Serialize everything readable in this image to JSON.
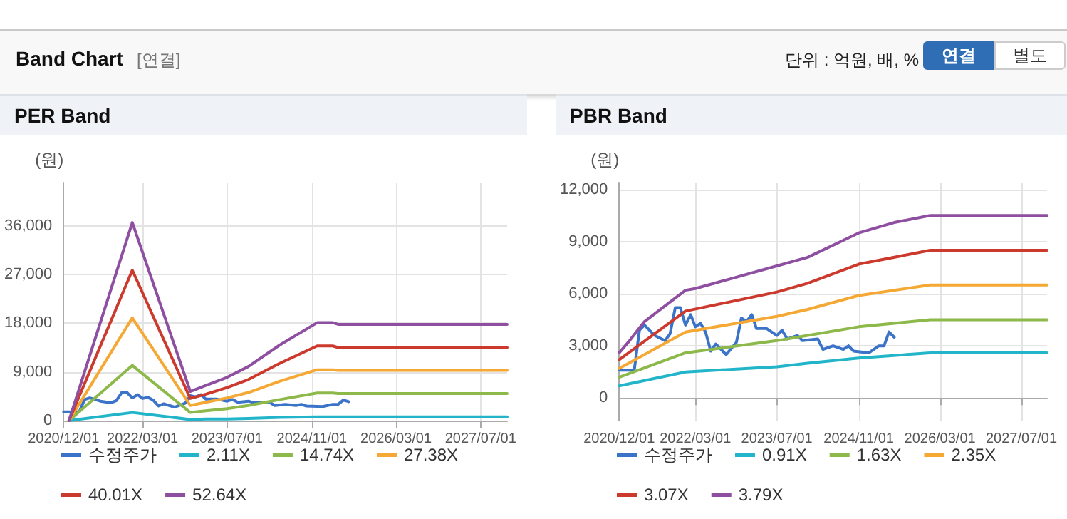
{
  "chart_data": [
    {
      "type": "other",
      "title": "Band Chart",
      "annotations": [
        "[연결]",
        "단위 : 억원, 배, %",
        "연결",
        "별도"
      ]
    },
    {
      "type": "line",
      "title": "PER Band",
      "ylabel": "(원)",
      "legend": "bottom",
      "grid": true,
      "xlim": [
        "2020-12-01",
        "2027-12-01"
      ],
      "xticks": [
        {
          "value": "2020-12-01",
          "label": "2020/12/01"
        },
        {
          "value": "2022-03-01",
          "label": "2022/03/01"
        },
        {
          "value": "2023-07-01",
          "label": "2023/07/01"
        },
        {
          "value": "2024-11-01",
          "label": "2024/11/01"
        },
        {
          "value": "2026-03-01",
          "label": "2026/03/01"
        },
        {
          "value": "2027-07-01",
          "label": "2027/07/01"
        }
      ],
      "ylim": [
        0,
        44000
      ],
      "yticks": [
        0,
        {
          "value": 9000,
          "label": "9,000"
        },
        {
          "value": 18000,
          "label": "18,000"
        },
        {
          "value": 27000,
          "label": "27,000"
        },
        {
          "value": 36000,
          "label": "36,000"
        }
      ],
      "series": [
        {
          "name": "수정주가",
          "color": "#3a73c8",
          "x": [
            "2020-12",
            "2021-03",
            "2021-04",
            "2021-05",
            "2021-07",
            "2021-09",
            "2021-10",
            "2021-11",
            "2021-12",
            "2022-01",
            "2022-02",
            "2022-03",
            "2022-04",
            "2022-05",
            "2022-06",
            "2022-07",
            "2022-09",
            "2022-11",
            "2022-12",
            "2023-01",
            "2023-02",
            "2023-03",
            "2023-05",
            "2023-07",
            "2023-08",
            "2023-09",
            "2023-11",
            "2023-12",
            "2024-03",
            "2024-04",
            "2024-06",
            "2024-08",
            "2024-09",
            "2024-10",
            "2025-01",
            "2025-03",
            "2025-04",
            "2025-05",
            "2025-06"
          ],
          "values": [
            1600,
            1600,
            3900,
            4200,
            3600,
            3300,
            3700,
            5200,
            5200,
            4200,
            4800,
            4100,
            4300,
            3800,
            2700,
            3100,
            2500,
            3200,
            4600,
            4400,
            4800,
            4000,
            4000,
            3600,
            3900,
            3400,
            3600,
            3300,
            3400,
            2800,
            3000,
            2800,
            3000,
            2700,
            2600,
            3000,
            3000,
            3800,
            3500
          ]
        },
        {
          "name": "2.11X",
          "color": "#22b5c9",
          "x": [
            "2021-01",
            "2022-01",
            "2022-12",
            "2023-03",
            "2023-07",
            "2023-11",
            "2024-05",
            "2024-12",
            "2025-03",
            "2025-04",
            "2027-12"
          ],
          "values": [
            0,
            1500,
            200,
            300,
            300,
            400,
            600,
            700,
            700,
            700,
            700
          ]
        },
        {
          "name": "14.74X",
          "color": "#8db84a",
          "x": [
            "2021-01",
            "2022-01",
            "2022-12",
            "2023-03",
            "2023-07",
            "2023-11",
            "2024-05",
            "2024-12",
            "2025-03",
            "2025-04",
            "2027-12"
          ],
          "values": [
            0,
            10200,
            1500,
            1800,
            2200,
            2800,
            3900,
            5100,
            5100,
            5000,
            5000
          ]
        },
        {
          "name": "27.38X",
          "color": "#f5a833",
          "x": [
            "2021-01",
            "2022-01",
            "2022-12",
            "2023-03",
            "2023-07",
            "2023-11",
            "2024-05",
            "2024-12",
            "2025-03",
            "2025-04",
            "2027-12"
          ],
          "values": [
            0,
            19000,
            2800,
            3400,
            4200,
            5200,
            7300,
            9400,
            9400,
            9300,
            9300
          ]
        },
        {
          "name": "40.01X",
          "color": "#cc3a2e",
          "x": [
            "2021-01",
            "2022-01",
            "2022-12",
            "2023-03",
            "2023-07",
            "2023-11",
            "2024-05",
            "2024-12",
            "2025-03",
            "2025-04",
            "2027-12"
          ],
          "values": [
            0,
            27800,
            4100,
            4900,
            6100,
            7600,
            10600,
            13800,
            13800,
            13500,
            13500
          ]
        },
        {
          "name": "52.64X",
          "color": "#8e4fa1",
          "x": [
            "2021-01",
            "2022-01",
            "2022-12",
            "2023-03",
            "2023-07",
            "2023-11",
            "2024-05",
            "2024-12",
            "2025-03",
            "2025-04",
            "2027-12"
          ],
          "values": [
            0,
            36600,
            5400,
            6500,
            8000,
            10000,
            14000,
            18100,
            18100,
            17800,
            17800
          ]
        }
      ]
    },
    {
      "type": "line",
      "title": "PBR Band",
      "ylabel": "(원)",
      "legend": "bottom",
      "grid": true,
      "xlim": [
        "2020-12-01",
        "2027-12-01"
      ],
      "xticks": [
        {
          "value": "2020-12-01",
          "label": "2020/12/01"
        },
        {
          "value": "2022-03-01",
          "label": "2022/03/01"
        },
        {
          "value": "2023-07-01",
          "label": "2023/07/01"
        },
        {
          "value": "2024-11-01",
          "label": "2024/11/01"
        },
        {
          "value": "2026-03-01",
          "label": "2026/03/01"
        },
        {
          "value": "2027-07-01",
          "label": "2027/07/01"
        }
      ],
      "ylim": [
        -1300,
        12400
      ],
      "yticks": [
        0,
        {
          "value": 3000,
          "label": "3,000"
        },
        {
          "value": 6000,
          "label": "6,000"
        },
        {
          "value": 9000,
          "label": "9,000"
        },
        {
          "value": 12000,
          "label": "12,000"
        }
      ],
      "series": [
        {
          "name": "수정주가",
          "color": "#3a73c8",
          "x": [
            "2020-12",
            "2021-03",
            "2021-04",
            "2021-05",
            "2021-07",
            "2021-09",
            "2021-10",
            "2021-11",
            "2021-12",
            "2022-01",
            "2022-02",
            "2022-03",
            "2022-04",
            "2022-05",
            "2022-06",
            "2022-07",
            "2022-09",
            "2022-11",
            "2022-12",
            "2023-01",
            "2023-02",
            "2023-03",
            "2023-05",
            "2023-07",
            "2023-08",
            "2023-09",
            "2023-11",
            "2023-12",
            "2024-03",
            "2024-04",
            "2024-06",
            "2024-08",
            "2024-09",
            "2024-10",
            "2025-01",
            "2025-03",
            "2025-04",
            "2025-05",
            "2025-06"
          ],
          "values": [
            1600,
            1600,
            3900,
            4200,
            3600,
            3300,
            3700,
            5200,
            5200,
            4200,
            4800,
            4100,
            4300,
            3800,
            2700,
            3100,
            2500,
            3200,
            4600,
            4400,
            4800,
            4000,
            4000,
            3600,
            3900,
            3400,
            3600,
            3300,
            3400,
            2800,
            3000,
            2800,
            3000,
            2700,
            2600,
            3000,
            3000,
            3800,
            3500
          ]
        },
        {
          "name": "0.91X",
          "color": "#22b5c9",
          "x": [
            "2020-12",
            "2022-01",
            "2023-07",
            "2024-01",
            "2024-11",
            "2026-01",
            "2027-12"
          ],
          "values": [
            700,
            1500,
            1800,
            2000,
            2300,
            2600,
            2600
          ]
        },
        {
          "name": "1.63X",
          "color": "#8db84a",
          "x": [
            "2020-12",
            "2022-01",
            "2023-07",
            "2024-01",
            "2024-11",
            "2026-01",
            "2027-12"
          ],
          "values": [
            1200,
            2600,
            3300,
            3600,
            4100,
            4500,
            4500
          ]
        },
        {
          "name": "2.35X",
          "color": "#f5a833",
          "x": [
            "2020-12",
            "2022-01",
            "2023-07",
            "2024-01",
            "2024-11",
            "2026-01",
            "2027-12"
          ],
          "values": [
            1700,
            3800,
            4700,
            5100,
            5900,
            6500,
            6500
          ]
        },
        {
          "name": "3.07X",
          "color": "#cc3a2e",
          "x": [
            "2020-12",
            "2022-01",
            "2023-07",
            "2024-01",
            "2024-11",
            "2026-01",
            "2027-12"
          ],
          "values": [
            2200,
            5000,
            6100,
            6600,
            7700,
            8500,
            8500
          ]
        },
        {
          "name": "3.79X",
          "color": "#8e4fa1",
          "x": [
            "2020-12",
            "2021-02",
            "2021-05",
            "2022-01",
            "2022-03",
            "2023-07",
            "2024-01",
            "2024-11",
            "2025-06",
            "2026-01",
            "2027-12"
          ],
          "values": [
            2600,
            3300,
            4400,
            6200,
            6300,
            7600,
            8100,
            9500,
            10100,
            10500,
            10500
          ]
        }
      ]
    }
  ]
}
